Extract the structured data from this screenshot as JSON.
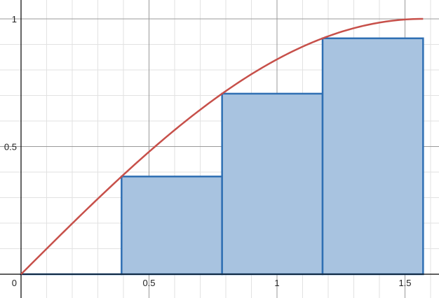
{
  "chart_data": {
    "type": "bar",
    "title": "",
    "xlabel": "",
    "ylabel": "",
    "xlim": [
      -0.05,
      1.62
    ],
    "ylim": [
      -0.09,
      1.07
    ],
    "grid": true,
    "x_ticks": [
      {
        "value": 0.5,
        "label": "0.5"
      },
      {
        "value": 1,
        "label": "1"
      },
      {
        "value": 1.5,
        "label": "1.5"
      }
    ],
    "y_ticks": [
      {
        "value": 0.5,
        "label": "0.5"
      },
      {
        "value": 1,
        "label": "1"
      }
    ],
    "origin_label": "0",
    "curve": {
      "function": "sin(x)",
      "x_range": [
        0,
        1.5708
      ]
    },
    "bars": [
      {
        "x_start": 0.0,
        "x_end": 0.3927,
        "value": 0.0
      },
      {
        "x_start": 0.3927,
        "x_end": 0.7854,
        "value": 0.3827
      },
      {
        "x_start": 0.7854,
        "x_end": 1.1781,
        "value": 0.7071
      },
      {
        "x_start": 1.1781,
        "x_end": 1.5708,
        "value": 0.9239
      }
    ],
    "colors": {
      "curve": "#c7504a",
      "bar_fill": "#a8c3e0",
      "bar_stroke": "#2f6fb3",
      "axis": "#000000",
      "major_grid": "#9a9a9a",
      "minor_grid": "#e2e2e2"
    }
  }
}
